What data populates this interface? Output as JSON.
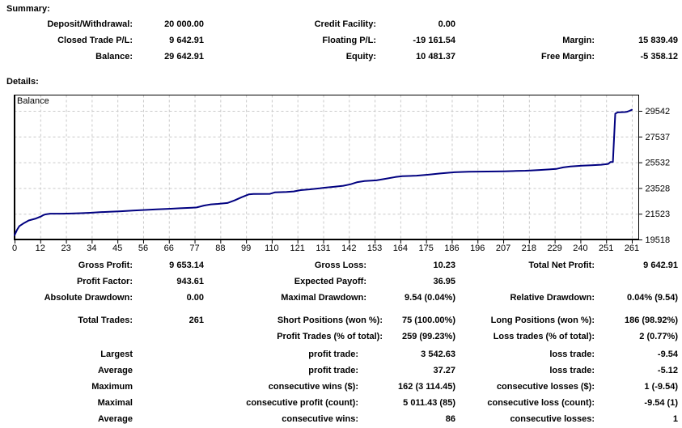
{
  "summary": {
    "heading": "Summary:",
    "rows": [
      [
        "Deposit/Withdrawal:",
        "20 000.00",
        "Credit Facility:",
        "0.00",
        "",
        ""
      ],
      [
        "Closed Trade P/L:",
        "9 642.91",
        "Floating P/L:",
        "-19 161.54",
        "Margin:",
        "15 839.49"
      ],
      [
        "Balance:",
        "29 642.91",
        "Equity:",
        "10 481.37",
        "Free Margin:",
        "-5 358.12"
      ]
    ]
  },
  "details": {
    "heading": "Details:",
    "profit_section": [
      [
        "Gross Profit:",
        "9 653.14",
        "Gross Loss:",
        "10.23",
        "Total Net Profit:",
        "9 642.91"
      ],
      [
        "Profit Factor:",
        "943.61",
        "Expected Payoff:",
        "36.95",
        "",
        ""
      ],
      [
        "Absolute Drawdown:",
        "0.00",
        "Maximal Drawdown:",
        "9.54 (0.04%)",
        "Relative Drawdown:",
        "0.04% (9.54)"
      ]
    ],
    "trades_section": [
      [
        "Total Trades:",
        "261",
        "Short Positions (won %):",
        "75 (100.00%)",
        "Long Positions (won %):",
        "186 (98.92%)"
      ],
      [
        "",
        "",
        "Profit Trades (% of total):",
        "259 (99.23%)",
        "Loss trades (% of total):",
        "2 (0.77%)"
      ]
    ],
    "extremes_section": [
      [
        "Largest",
        "",
        "profit trade:",
        "3 542.63",
        "loss trade:",
        "-9.54"
      ],
      [
        "Average",
        "",
        "profit trade:",
        "37.27",
        "loss trade:",
        "-5.12"
      ],
      [
        "Maximum",
        "",
        "consecutive wins ($):",
        "162 (3 114.45)",
        "consecutive losses ($):",
        "1 (-9.54)"
      ],
      [
        "Maximal",
        "",
        "consecutive profit (count):",
        "5 011.43 (85)",
        "consecutive loss (count):",
        "-9.54 (1)"
      ],
      [
        "Average",
        "",
        "consecutive wins:",
        "86",
        "consecutive losses:",
        "1"
      ]
    ]
  },
  "chart_data": {
    "type": "line",
    "title": "Balance",
    "series_label": "Balance",
    "line_color": "#000080",
    "grid_color": "#c9c9c9",
    "axis_color": "#000000",
    "legend_position": "top-left-inside",
    "grid": "dashed",
    "y_axis_side": "right",
    "x_ticks": [
      0,
      12,
      23,
      34,
      45,
      56,
      66,
      77,
      88,
      99,
      110,
      121,
      131,
      142,
      153,
      164,
      175,
      186,
      196,
      207,
      218,
      229,
      240,
      251,
      261
    ],
    "y_ticks": [
      19518,
      21523,
      23528,
      25532,
      27537,
      29542
    ],
    "xlim": [
      0,
      264
    ],
    "ylim": [
      19518,
      30200
    ],
    "points": [
      [
        0,
        19850
      ],
      [
        1,
        20250
      ],
      [
        2,
        20550
      ],
      [
        4,
        20800
      ],
      [
        6,
        21000
      ],
      [
        9,
        21150
      ],
      [
        11,
        21300
      ],
      [
        12,
        21400
      ],
      [
        13,
        21470
      ],
      [
        15,
        21530
      ],
      [
        20,
        21530
      ],
      [
        24,
        21540
      ],
      [
        28,
        21570
      ],
      [
        32,
        21600
      ],
      [
        36,
        21640
      ],
      [
        40,
        21680
      ],
      [
        45,
        21720
      ],
      [
        50,
        21770
      ],
      [
        55,
        21820
      ],
      [
        60,
        21870
      ],
      [
        66,
        21915
      ],
      [
        70,
        21950
      ],
      [
        75,
        21995
      ],
      [
        77,
        22015
      ],
      [
        80,
        22160
      ],
      [
        83,
        22255
      ],
      [
        86,
        22290
      ],
      [
        90,
        22360
      ],
      [
        93,
        22560
      ],
      [
        96,
        22810
      ],
      [
        99,
        23030
      ],
      [
        101,
        23065
      ],
      [
        108,
        23075
      ],
      [
        110,
        23185
      ],
      [
        115,
        23225
      ],
      [
        118,
        23265
      ],
      [
        121,
        23365
      ],
      [
        125,
        23425
      ],
      [
        129,
        23505
      ],
      [
        131,
        23555
      ],
      [
        135,
        23625
      ],
      [
        139,
        23705
      ],
      [
        142,
        23815
      ],
      [
        145,
        23985
      ],
      [
        148,
        24075
      ],
      [
        153,
        24125
      ],
      [
        157,
        24255
      ],
      [
        161,
        24385
      ],
      [
        164,
        24445
      ],
      [
        170,
        24495
      ],
      [
        175,
        24565
      ],
      [
        180,
        24665
      ],
      [
        184,
        24725
      ],
      [
        186,
        24755
      ],
      [
        192,
        24795
      ],
      [
        200,
        24815
      ],
      [
        207,
        24835
      ],
      [
        212,
        24855
      ],
      [
        216,
        24875
      ],
      [
        218,
        24895
      ],
      [
        222,
        24935
      ],
      [
        226,
        24975
      ],
      [
        229,
        25015
      ],
      [
        232,
        25135
      ],
      [
        235,
        25205
      ],
      [
        240,
        25265
      ],
      [
        244,
        25305
      ],
      [
        248,
        25345
      ],
      [
        251,
        25405
      ],
      [
        252,
        25560
      ],
      [
        253,
        25565
      ],
      [
        254,
        29320
      ],
      [
        255,
        29420
      ],
      [
        258,
        29450
      ],
      [
        259,
        29475
      ],
      [
        260,
        29545
      ],
      [
        261,
        29625
      ]
    ]
  }
}
